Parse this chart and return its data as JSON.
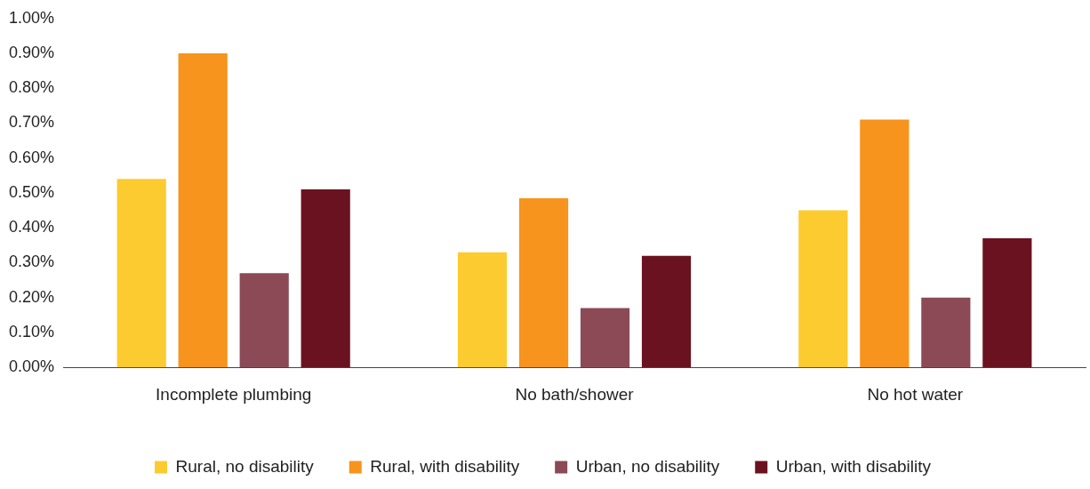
{
  "chart_data": {
    "type": "bar",
    "categories": [
      "Incomplete plumbing",
      "No bath/shower",
      "No hot water"
    ],
    "series": [
      {
        "name": "Rural, no disability",
        "color": "#fccb30",
        "values": [
          0.54,
          0.33,
          0.45
        ]
      },
      {
        "name": "Rural, with disability",
        "color": "#f7941d",
        "values": [
          0.9,
          0.485,
          0.71
        ]
      },
      {
        "name": "Urban, no disability",
        "color": "#8b4a55",
        "values": [
          0.27,
          0.17,
          0.2
        ]
      },
      {
        "name": "Urban, with disability",
        "color": "#6b1220",
        "values": [
          0.51,
          0.32,
          0.37
        ]
      }
    ],
    "ylim": [
      0,
      1
    ],
    "yticks": [
      {
        "value": 0,
        "label": "0.00%"
      },
      {
        "value": 0.1,
        "label": "0.10%"
      },
      {
        "value": 0.2,
        "label": "0.20%"
      },
      {
        "value": 0.3,
        "label": "0.30%"
      },
      {
        "value": 0.4,
        "label": "0.40%"
      },
      {
        "value": 0.5,
        "label": "0.50%"
      },
      {
        "value": 0.6,
        "label": "0.60%"
      },
      {
        "value": 0.7,
        "label": "0.70%"
      },
      {
        "value": 0.8,
        "label": "0.80%"
      },
      {
        "value": 0.9,
        "label": "0.90%"
      },
      {
        "value": 1,
        "label": "1.00%"
      }
    ],
    "grid": false,
    "legend": "bottom"
  }
}
